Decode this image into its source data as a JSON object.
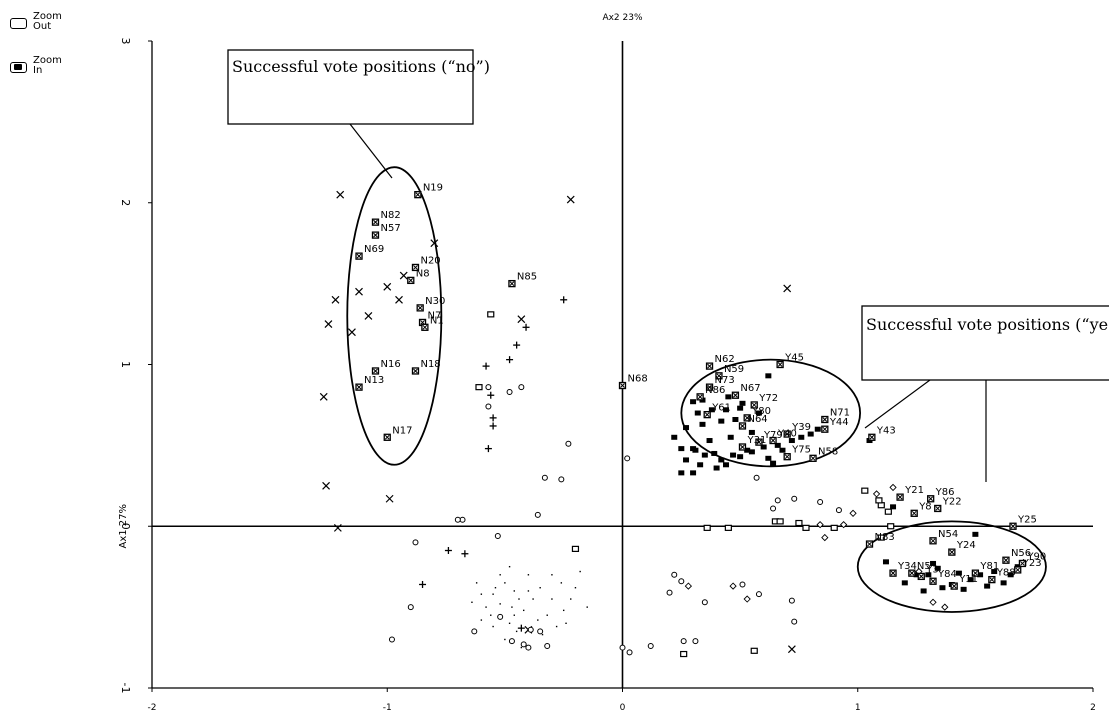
{
  "zoom": {
    "out_label": "Zoom\nOut",
    "in_label": "Zoom\nIn"
  },
  "chart_data": {
    "type": "scatter",
    "title": "",
    "xlabel": "Ax2 23%",
    "ylabel": "Ax1 27%",
    "xlim": [
      -2,
      2
    ],
    "ylim": [
      -1,
      3
    ],
    "x_ticks": [
      -2,
      -1,
      0,
      1,
      2
    ],
    "y_ticks": [
      -1,
      0,
      1,
      2,
      3
    ],
    "grid": false,
    "annotations": [
      {
        "text": "Successful vote positions (“no”)",
        "ellipse_center": [
          -0.97,
          1.3
        ],
        "ellipse_radii": [
          0.2,
          0.92
        ]
      },
      {
        "text": "Successful vote positions (“yes”)",
        "ellipse_center": [
          0.63,
          0.7
        ],
        "ellipse_radii": [
          0.38,
          0.33
        ]
      },
      {
        "text": "",
        "ellipse_center": [
          1.4,
          -0.25
        ],
        "ellipse_radii": [
          0.4,
          0.28
        ]
      }
    ],
    "labeled_points": [
      {
        "label": "N19",
        "x": -0.87,
        "y": 2.05
      },
      {
        "label": "N82",
        "x": -1.05,
        "y": 1.88
      },
      {
        "label": "N57",
        "x": -1.05,
        "y": 1.8
      },
      {
        "label": "N69",
        "x": -1.12,
        "y": 1.67
      },
      {
        "label": "N20",
        "x": -0.88,
        "y": 1.6
      },
      {
        "label": "N8",
        "x": -0.9,
        "y": 1.52
      },
      {
        "label": "N30",
        "x": -0.86,
        "y": 1.35
      },
      {
        "label": "N7",
        "x": -0.85,
        "y": 1.26
      },
      {
        "label": "N1",
        "x": -0.84,
        "y": 1.23
      },
      {
        "label": "N16",
        "x": -1.05,
        "y": 0.96
      },
      {
        "label": "N18",
        "x": -0.88,
        "y": 0.96
      },
      {
        "label": "N13",
        "x": -1.12,
        "y": 0.86
      },
      {
        "label": "N17",
        "x": -1.0,
        "y": 0.55
      },
      {
        "label": "N85",
        "x": -0.47,
        "y": 1.5
      },
      {
        "label": "N68",
        "x": 0.0,
        "y": 0.87
      },
      {
        "label": "N62",
        "x": 0.37,
        "y": 0.99
      },
      {
        "label": "N59",
        "x": 0.41,
        "y": 0.93
      },
      {
        "label": "N73",
        "x": 0.37,
        "y": 0.86
      },
      {
        "label": "N86",
        "x": 0.33,
        "y": 0.8
      },
      {
        "label": "N67",
        "x": 0.48,
        "y": 0.81
      },
      {
        "label": "Y72",
        "x": 0.56,
        "y": 0.75
      },
      {
        "label": "Y80",
        "x": 0.53,
        "y": 0.67
      },
      {
        "label": "Y61",
        "x": 0.36,
        "y": 0.69
      },
      {
        "label": "N64",
        "x": 0.51,
        "y": 0.62
      },
      {
        "label": "Y45",
        "x": 0.67,
        "y": 1.0
      },
      {
        "label": "N71",
        "x": 0.86,
        "y": 0.66
      },
      {
        "label": "Y44",
        "x": 0.86,
        "y": 0.6
      },
      {
        "label": "Y39",
        "x": 0.7,
        "y": 0.57
      },
      {
        "label": "Y40",
        "x": 0.64,
        "y": 0.53
      },
      {
        "label": "Y79",
        "x": 0.58,
        "y": 0.52
      },
      {
        "label": "Y75",
        "x": 0.7,
        "y": 0.43
      },
      {
        "label": "N58",
        "x": 0.81,
        "y": 0.42
      },
      {
        "label": "Y31",
        "x": 0.51,
        "y": 0.49
      },
      {
        "label": "Y43",
        "x": 1.06,
        "y": 0.55
      },
      {
        "label": "Y21",
        "x": 1.18,
        "y": 0.18
      },
      {
        "label": "Y86",
        "x": 1.31,
        "y": 0.17
      },
      {
        "label": "Y8",
        "x": 1.24,
        "y": 0.08
      },
      {
        "label": "Y22",
        "x": 1.34,
        "y": 0.11
      },
      {
        "label": "Y25",
        "x": 1.66,
        "y": 0.0
      },
      {
        "label": "N54",
        "x": 1.32,
        "y": -0.09
      },
      {
        "label": "N83",
        "x": 1.05,
        "y": -0.11
      },
      {
        "label": "Y24",
        "x": 1.4,
        "y": -0.16
      },
      {
        "label": "N56",
        "x": 1.63,
        "y": -0.21
      },
      {
        "label": "Y90",
        "x": 1.7,
        "y": -0.23
      },
      {
        "label": "Y23",
        "x": 1.68,
        "y": -0.27
      },
      {
        "label": "Y34",
        "x": 1.15,
        "y": -0.29
      },
      {
        "label": "N5",
        "x": 1.23,
        "y": -0.29
      },
      {
        "label": "Y3",
        "x": 1.27,
        "y": -0.31
      },
      {
        "label": "Y84",
        "x": 1.32,
        "y": -0.34
      },
      {
        "label": "Y81",
        "x": 1.5,
        "y": -0.29
      },
      {
        "label": "Y11",
        "x": 1.41,
        "y": -0.37
      },
      {
        "label": "Y88",
        "x": 1.57,
        "y": -0.33
      }
    ],
    "unlabeled_points": {
      "cross": [
        [
          -1.2,
          2.05
        ],
        [
          -0.8,
          1.75
        ],
        [
          -1.25,
          1.25
        ],
        [
          -1.22,
          1.4
        ],
        [
          -1.15,
          1.2
        ],
        [
          -1.12,
          1.45
        ],
        [
          -1.08,
          1.3
        ],
        [
          -1.0,
          1.48
        ],
        [
          -0.95,
          1.4
        ],
        [
          -0.93,
          1.55
        ],
        [
          -1.27,
          0.8
        ],
        [
          -1.26,
          0.25
        ],
        [
          -0.99,
          0.17
        ],
        [
          -0.22,
          2.02
        ],
        [
          -1.21,
          -0.01
        ],
        [
          -0.43,
          1.28
        ],
        [
          0.7,
          1.47
        ],
        [
          0.72,
          -0.76
        ],
        [
          -0.4,
          -0.64
        ]
      ],
      "plus": [
        [
          -0.25,
          1.4
        ],
        [
          -0.41,
          1.23
        ],
        [
          -0.45,
          1.12
        ],
        [
          -0.48,
          1.03
        ],
        [
          -0.58,
          0.99
        ],
        [
          -0.56,
          0.81
        ],
        [
          -0.55,
          0.67
        ],
        [
          -0.55,
          0.62
        ],
        [
          -0.57,
          0.48
        ],
        [
          -0.74,
          -0.15
        ],
        [
          -0.67,
          -0.17
        ],
        [
          -0.85,
          -0.36
        ],
        [
          -0.43,
          -0.63
        ]
      ],
      "circle": [
        [
          -0.57,
          0.86
        ],
        [
          -0.57,
          0.74
        ],
        [
          -0.48,
          0.83
        ],
        [
          -0.43,
          0.86
        ],
        [
          -0.23,
          0.51
        ],
        [
          -0.33,
          0.3
        ],
        [
          -0.26,
          0.29
        ],
        [
          -0.36,
          0.07
        ],
        [
          -0.68,
          0.04
        ],
        [
          -0.7,
          0.04
        ],
        [
          -0.53,
          -0.06
        ],
        [
          -0.88,
          -0.1
        ],
        [
          -0.9,
          -0.5
        ],
        [
          -0.98,
          -0.7
        ],
        [
          -0.63,
          -0.65
        ],
        [
          -0.52,
          -0.56
        ],
        [
          -0.39,
          -0.64
        ],
        [
          -0.35,
          -0.65
        ],
        [
          -0.47,
          -0.71
        ],
        [
          -0.42,
          -0.73
        ],
        [
          -0.4,
          -0.75
        ],
        [
          -0.32,
          -0.74
        ],
        [
          0.02,
          0.42
        ],
        [
          0.0,
          -0.75
        ],
        [
          0.03,
          -0.78
        ],
        [
          0.12,
          -0.74
        ],
        [
          0.26,
          -0.71
        ],
        [
          0.31,
          -0.71
        ],
        [
          0.2,
          -0.41
        ],
        [
          0.35,
          -0.47
        ],
        [
          0.51,
          -0.36
        ],
        [
          0.58,
          -0.42
        ],
        [
          0.72,
          -0.46
        ],
        [
          0.73,
          -0.59
        ],
        [
          0.22,
          -0.3
        ],
        [
          0.25,
          -0.34
        ],
        [
          0.64,
          0.11
        ],
        [
          0.66,
          0.16
        ],
        [
          0.73,
          0.17
        ],
        [
          0.84,
          0.15
        ],
        [
          0.92,
          0.1
        ],
        [
          0.57,
          0.3
        ]
      ],
      "square": [
        [
          -0.56,
          1.31
        ],
        [
          -0.61,
          0.86
        ],
        [
          -0.2,
          -0.14
        ],
        [
          0.26,
          -0.79
        ],
        [
          0.36,
          -0.01
        ],
        [
          0.56,
          -0.77
        ],
        [
          0.65,
          0.03
        ],
        [
          0.67,
          0.03
        ],
        [
          0.75,
          0.02
        ],
        [
          0.78,
          -0.01
        ],
        [
          0.9,
          -0.01
        ],
        [
          1.1,
          0.13
        ],
        [
          1.13,
          0.09
        ],
        [
          1.03,
          0.22
        ],
        [
          1.09,
          0.16
        ],
        [
          1.1,
          -0.07
        ],
        [
          1.14,
          0.0
        ],
        [
          0.45,
          -0.01
        ]
      ],
      "filled": [
        [
          0.22,
          0.55
        ],
        [
          0.25,
          0.48
        ],
        [
          0.25,
          0.33
        ],
        [
          0.27,
          0.41
        ],
        [
          0.27,
          0.61
        ],
        [
          0.3,
          0.48
        ],
        [
          0.3,
          0.33
        ],
        [
          0.31,
          0.47
        ],
        [
          0.33,
          0.38
        ],
        [
          0.34,
          0.63
        ],
        [
          0.35,
          0.44
        ],
        [
          0.37,
          0.53
        ],
        [
          0.39,
          0.45
        ],
        [
          0.4,
          0.36
        ],
        [
          0.42,
          0.41
        ],
        [
          0.44,
          0.38
        ],
        [
          0.46,
          0.55
        ],
        [
          0.47,
          0.44
        ],
        [
          0.5,
          0.43
        ],
        [
          0.53,
          0.47
        ],
        [
          0.55,
          0.46
        ],
        [
          0.6,
          0.49
        ],
        [
          0.62,
          0.42
        ],
        [
          0.64,
          0.39
        ],
        [
          0.66,
          0.5
        ],
        [
          0.68,
          0.47
        ],
        [
          0.72,
          0.53
        ],
        [
          0.76,
          0.55
        ],
        [
          0.8,
          0.57
        ],
        [
          0.83,
          0.6
        ],
        [
          1.05,
          0.53
        ],
        [
          1.12,
          -0.22
        ],
        [
          1.15,
          0.12
        ],
        [
          1.2,
          -0.35
        ],
        [
          1.25,
          -0.3
        ],
        [
          1.28,
          -0.4
        ],
        [
          1.32,
          -0.23
        ],
        [
          1.34,
          -0.26
        ],
        [
          1.36,
          -0.38
        ],
        [
          1.4,
          -0.36
        ],
        [
          1.43,
          -0.29
        ],
        [
          1.45,
          -0.39
        ],
        [
          1.48,
          -0.33
        ],
        [
          1.52,
          -0.3
        ],
        [
          1.55,
          -0.37
        ],
        [
          1.58,
          -0.28
        ],
        [
          1.62,
          -0.35
        ],
        [
          1.65,
          -0.3
        ],
        [
          1.68,
          -0.25
        ],
        [
          1.5,
          -0.05
        ],
        [
          1.3,
          -0.3
        ],
        [
          0.5,
          0.73
        ],
        [
          0.45,
          0.8
        ],
        [
          0.38,
          0.72
        ],
        [
          0.42,
          0.65
        ],
        [
          0.34,
          0.78
        ],
        [
          0.32,
          0.7
        ],
        [
          0.3,
          0.77
        ],
        [
          0.55,
          0.58
        ],
        [
          0.48,
          0.66
        ],
        [
          0.44,
          0.72
        ],
        [
          0.51,
          0.76
        ],
        [
          0.58,
          0.7
        ],
        [
          0.62,
          0.93
        ]
      ],
      "diamond": [
        [
          1.15,
          0.24
        ],
        [
          0.98,
          0.08
        ],
        [
          0.84,
          0.01
        ],
        [
          0.94,
          0.01
        ],
        [
          1.08,
          0.2
        ],
        [
          0.86,
          -0.07
        ],
        [
          1.26,
          -0.28
        ],
        [
          1.32,
          -0.47
        ],
        [
          1.37,
          -0.5
        ],
        [
          0.53,
          -0.45
        ],
        [
          0.47,
          -0.37
        ],
        [
          0.28,
          -0.37
        ]
      ],
      "dot": [
        [
          -0.5,
          -0.35
        ],
        [
          -0.46,
          -0.4
        ],
        [
          -0.44,
          -0.45
        ],
        [
          -0.47,
          -0.5
        ],
        [
          -0.52,
          -0.48
        ],
        [
          -0.55,
          -0.42
        ],
        [
          -0.58,
          -0.5
        ],
        [
          -0.6,
          -0.42
        ],
        [
          -0.42,
          -0.52
        ],
        [
          -0.38,
          -0.45
        ],
        [
          -0.35,
          -0.38
        ],
        [
          -0.3,
          -0.45
        ],
        [
          -0.32,
          -0.55
        ],
        [
          -0.28,
          -0.62
        ],
        [
          -0.25,
          -0.52
        ],
        [
          -0.22,
          -0.45
        ],
        [
          -0.2,
          -0.38
        ],
        [
          -0.18,
          -0.28
        ],
        [
          -0.48,
          -0.6
        ],
        [
          -0.45,
          -0.65
        ],
        [
          -0.5,
          -0.7
        ],
        [
          -0.55,
          -0.62
        ],
        [
          -0.6,
          -0.58
        ],
        [
          -0.62,
          -0.35
        ],
        [
          -0.4,
          -0.3
        ],
        [
          -0.36,
          -0.58
        ],
        [
          -0.43,
          -0.75
        ],
        [
          -0.52,
          -0.3
        ],
        [
          -0.48,
          -0.25
        ],
        [
          -0.26,
          -0.35
        ],
        [
          -0.15,
          -0.5
        ],
        [
          -0.64,
          -0.47
        ],
        [
          -0.56,
          -0.55
        ],
        [
          -0.34,
          -0.67
        ],
        [
          -0.4,
          -0.4
        ],
        [
          -0.46,
          -0.55
        ],
        [
          -0.54,
          -0.38
        ],
        [
          -0.3,
          -0.3
        ],
        [
          -0.24,
          -0.6
        ]
      ]
    }
  }
}
